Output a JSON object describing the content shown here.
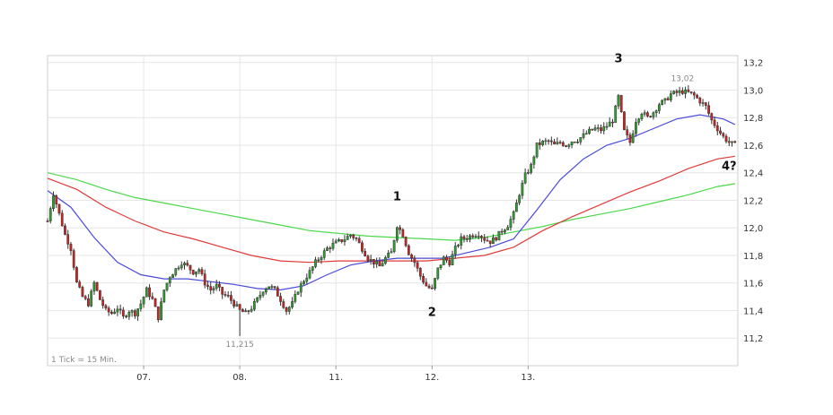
{
  "chart_data": {
    "type": "candlestick",
    "tick_note": "1 Tick = 15 Min.",
    "ylim": [
      11.0,
      13.25
    ],
    "y_ticks": [
      "13,2",
      "13,0",
      "12,8",
      "12,6",
      "12,4",
      "12,2",
      "12,0",
      "11,8",
      "11,6",
      "11,4",
      "11,2"
    ],
    "y_tick_values": [
      13.2,
      13.0,
      12.8,
      12.6,
      12.4,
      12.2,
      12.0,
      11.8,
      11.6,
      11.4,
      11.2
    ],
    "x_day_labels": [
      "07.",
      "08.",
      "11.",
      "12.",
      "13."
    ],
    "annotations": {
      "high": "13,02",
      "low": "11,215",
      "wave_1": "1",
      "wave_2": "2",
      "wave_3": "3",
      "wave_4": "4?"
    },
    "colors": {
      "up": "#2e9e2e",
      "down": "#cc2222",
      "ma_blue": "#4a4ad8",
      "ma_red": "#e03a3a",
      "ma_green": "#4ad84a",
      "grid": "#e6e6e6"
    },
    "price_path": [
      [
        0,
        12.05
      ],
      [
        2,
        12.25
      ],
      [
        4,
        12.1
      ],
      [
        6,
        11.95
      ],
      [
        8,
        11.85
      ],
      [
        10,
        11.6
      ],
      [
        12,
        11.5
      ],
      [
        14,
        11.45
      ],
      [
        16,
        11.6
      ],
      [
        18,
        11.48
      ],
      [
        20,
        11.4
      ],
      [
        22,
        11.38
      ],
      [
        24,
        11.42
      ],
      [
        26,
        11.35
      ],
      [
        28,
        11.4
      ],
      [
        30,
        11.38
      ],
      [
        32,
        11.45
      ],
      [
        34,
        11.55
      ],
      [
        36,
        11.48
      ],
      [
        38,
        11.35
      ],
      [
        40,
        11.55
      ],
      [
        42,
        11.65
      ],
      [
        44,
        11.7
      ],
      [
        46,
        11.75
      ],
      [
        48,
        11.72
      ],
      [
        50,
        11.68
      ],
      [
        52,
        11.7
      ],
      [
        54,
        11.6
      ],
      [
        56,
        11.55
      ],
      [
        58,
        11.58
      ],
      [
        60,
        11.52
      ],
      [
        62,
        11.5
      ],
      [
        64,
        11.45
      ],
      [
        66,
        11.4
      ],
      [
        68,
        11.38
      ],
      [
        70,
        11.42
      ],
      [
        72,
        11.48
      ],
      [
        74,
        11.55
      ],
      [
        76,
        11.58
      ],
      [
        78,
        11.55
      ],
      [
        80,
        11.48
      ],
      [
        82,
        11.4
      ],
      [
        84,
        11.45
      ],
      [
        86,
        11.55
      ],
      [
        88,
        11.62
      ],
      [
        90,
        11.68
      ],
      [
        92,
        11.75
      ],
      [
        94,
        11.8
      ],
      [
        96,
        11.85
      ],
      [
        98,
        11.88
      ],
      [
        100,
        11.9
      ],
      [
        102,
        11.92
      ],
      [
        104,
        11.95
      ],
      [
        106,
        11.92
      ],
      [
        108,
        11.85
      ],
      [
        110,
        11.78
      ],
      [
        112,
        11.75
      ],
      [
        114,
        11.72
      ],
      [
        116,
        11.78
      ],
      [
        118,
        11.82
      ],
      [
        120,
        12.02
      ],
      [
        122,
        11.95
      ],
      [
        124,
        11.82
      ],
      [
        126,
        11.75
      ],
      [
        128,
        11.65
      ],
      [
        130,
        11.58
      ],
      [
        132,
        11.55
      ],
      [
        134,
        11.7
      ],
      [
        136,
        11.78
      ],
      [
        138,
        11.75
      ],
      [
        140,
        11.85
      ],
      [
        142,
        11.92
      ],
      [
        144,
        11.93
      ],
      [
        146,
        11.95
      ],
      [
        148,
        11.96
      ],
      [
        150,
        11.92
      ],
      [
        152,
        11.9
      ],
      [
        154,
        11.93
      ],
      [
        156,
        11.98
      ],
      [
        158,
        12.02
      ],
      [
        160,
        12.1
      ],
      [
        162,
        12.25
      ],
      [
        164,
        12.38
      ],
      [
        166,
        12.45
      ],
      [
        168,
        12.6
      ],
      [
        170,
        12.62
      ],
      [
        172,
        12.63
      ],
      [
        174,
        12.6
      ],
      [
        176,
        12.62
      ],
      [
        178,
        12.6
      ],
      [
        180,
        12.63
      ],
      [
        182,
        12.64
      ],
      [
        184,
        12.67
      ],
      [
        186,
        12.7
      ],
      [
        188,
        12.72
      ],
      [
        190,
        12.71
      ],
      [
        192,
        12.74
      ],
      [
        194,
        12.78
      ],
      [
        196,
        12.95
      ],
      [
        198,
        12.7
      ],
      [
        200,
        12.62
      ],
      [
        202,
        12.78
      ],
      [
        204,
        12.84
      ],
      [
        206,
        12.8
      ],
      [
        208,
        12.84
      ],
      [
        210,
        12.9
      ],
      [
        212,
        12.92
      ],
      [
        214,
        12.97
      ],
      [
        216,
        12.98
      ],
      [
        218,
        12.99
      ],
      [
        220,
        12.98
      ],
      [
        222,
        12.96
      ],
      [
        224,
        12.92
      ],
      [
        226,
        12.88
      ],
      [
        228,
        12.78
      ],
      [
        230,
        12.72
      ],
      [
        232,
        12.66
      ],
      [
        234,
        12.62
      ],
      [
        236,
        12.6
      ]
    ],
    "ma_short": [
      [
        0,
        12.27
      ],
      [
        8,
        12.15
      ],
      [
        16,
        11.93
      ],
      [
        24,
        11.75
      ],
      [
        32,
        11.66
      ],
      [
        40,
        11.63
      ],
      [
        48,
        11.63
      ],
      [
        56,
        11.61
      ],
      [
        64,
        11.59
      ],
      [
        72,
        11.56
      ],
      [
        80,
        11.55
      ],
      [
        88,
        11.58
      ],
      [
        96,
        11.66
      ],
      [
        104,
        11.73
      ],
      [
        112,
        11.76
      ],
      [
        120,
        11.78
      ],
      [
        128,
        11.78
      ],
      [
        136,
        11.78
      ],
      [
        144,
        11.82
      ],
      [
        152,
        11.86
      ],
      [
        160,
        11.92
      ],
      [
        168,
        12.13
      ],
      [
        176,
        12.35
      ],
      [
        184,
        12.5
      ],
      [
        192,
        12.6
      ],
      [
        200,
        12.65
      ],
      [
        208,
        12.72
      ],
      [
        216,
        12.79
      ],
      [
        224,
        12.82
      ],
      [
        232,
        12.79
      ],
      [
        236,
        12.75
      ]
    ],
    "ma_mid": [
      [
        0,
        12.36
      ],
      [
        10,
        12.28
      ],
      [
        20,
        12.15
      ],
      [
        30,
        12.05
      ],
      [
        40,
        11.97
      ],
      [
        50,
        11.92
      ],
      [
        60,
        11.86
      ],
      [
        70,
        11.8
      ],
      [
        80,
        11.76
      ],
      [
        90,
        11.75
      ],
      [
        100,
        11.76
      ],
      [
        110,
        11.76
      ],
      [
        120,
        11.76
      ],
      [
        130,
        11.76
      ],
      [
        140,
        11.78
      ],
      [
        150,
        11.8
      ],
      [
        160,
        11.86
      ],
      [
        170,
        11.98
      ],
      [
        180,
        12.08
      ],
      [
        190,
        12.17
      ],
      [
        200,
        12.26
      ],
      [
        210,
        12.34
      ],
      [
        220,
        12.43
      ],
      [
        230,
        12.5
      ],
      [
        236,
        12.52
      ]
    ],
    "ma_long": [
      [
        0,
        12.4
      ],
      [
        10,
        12.35
      ],
      [
        20,
        12.28
      ],
      [
        30,
        12.22
      ],
      [
        40,
        12.18
      ],
      [
        50,
        12.14
      ],
      [
        60,
        12.1
      ],
      [
        70,
        12.06
      ],
      [
        80,
        12.02
      ],
      [
        90,
        11.98
      ],
      [
        100,
        11.96
      ],
      [
        110,
        11.94
      ],
      [
        120,
        11.93
      ],
      [
        130,
        11.92
      ],
      [
        140,
        11.91
      ],
      [
        150,
        11.93
      ],
      [
        160,
        11.97
      ],
      [
        170,
        12.01
      ],
      [
        180,
        12.06
      ],
      [
        190,
        12.1
      ],
      [
        200,
        12.14
      ],
      [
        210,
        12.19
      ],
      [
        220,
        12.24
      ],
      [
        230,
        12.3
      ],
      [
        236,
        12.32
      ]
    ]
  }
}
